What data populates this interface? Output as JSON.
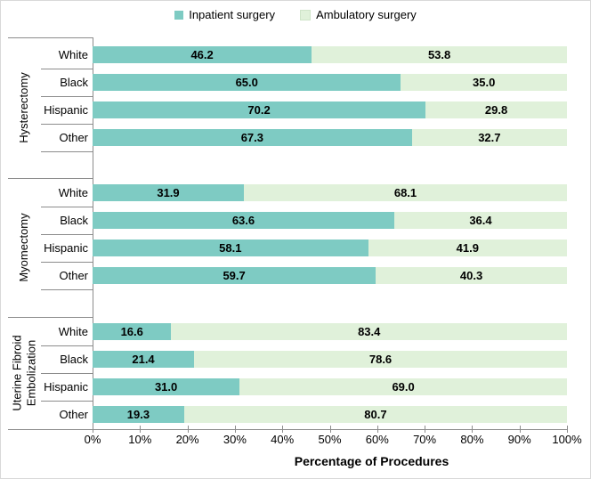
{
  "legend": {
    "items": [
      {
        "label": "Inpatient surgery",
        "color": "#7ECBC3"
      },
      {
        "label": "Ambulatory surgery",
        "color": "#E0F1DA",
        "border": "#cfe4c9"
      }
    ]
  },
  "x_axis": {
    "tick_labels": [
      "0%",
      "10%",
      "20%",
      "30%",
      "40%",
      "50%",
      "60%",
      "70%",
      "80%",
      "90%",
      "100%"
    ],
    "title": "Percentage of Procedures"
  },
  "chart_data": {
    "type": "bar",
    "orientation": "horizontal",
    "stacked": true,
    "unit": "percent",
    "x_range": [
      0,
      100
    ],
    "x_tick_step": 10,
    "grid": false,
    "legend_position": "top",
    "xlabel": "Percentage of Procedures",
    "ylabel": "",
    "series_names": [
      "Inpatient surgery",
      "Ambulatory surgery"
    ],
    "series_colors": [
      "#7ECBC3",
      "#E0F1DA"
    ],
    "groups": [
      {
        "name": "Hysterectomy",
        "display_name": "Hysterectomy",
        "categories": [
          "White",
          "Black",
          "Hispanic",
          "Other"
        ],
        "series": [
          {
            "name": "Inpatient surgery",
            "values": [
              46.2,
              65.0,
              70.2,
              67.3
            ]
          },
          {
            "name": "Ambulatory surgery",
            "values": [
              53.8,
              35.0,
              29.8,
              32.7
            ]
          }
        ]
      },
      {
        "name": "Myomectomy",
        "display_name": "Myomectomy",
        "categories": [
          "White",
          "Black",
          "Hispanic",
          "Other"
        ],
        "series": [
          {
            "name": "Inpatient surgery",
            "values": [
              31.9,
              63.6,
              58.1,
              59.7
            ]
          },
          {
            "name": "Ambulatory surgery",
            "values": [
              68.1,
              36.4,
              41.9,
              40.3
            ]
          }
        ]
      },
      {
        "name": "Uterine Fibroid Embolization",
        "display_name": "Uterine Fibroid\nEmbolization",
        "categories": [
          "White",
          "Black",
          "Hispanic",
          "Other"
        ],
        "series": [
          {
            "name": "Inpatient surgery",
            "values": [
              16.6,
              21.4,
              31.0,
              19.3
            ]
          },
          {
            "name": "Ambulatory surgery",
            "values": [
              83.4,
              78.6,
              69.0,
              80.7
            ]
          }
        ]
      }
    ]
  }
}
